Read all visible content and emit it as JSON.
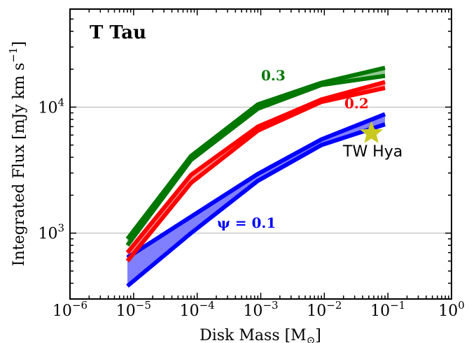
{
  "chart_data": {
    "type": "line",
    "title": "T Tau",
    "xlabel": "Disk Mass [M",
    "xlabel_sub": "⊙",
    "xlabel_close": "]",
    "ylabel": "Integrated Flux [mJy km s",
    "ylabel_sup": "−1",
    "ylabel_close": "]",
    "xscale": "log",
    "yscale": "log",
    "xlim": [
      1e-06,
      1
    ],
    "ylim": [
      300,
      60000
    ],
    "x_tick_labels": [
      {
        "value": 1e-06,
        "base": "10",
        "exp": "−6"
      },
      {
        "value": 1e-05,
        "base": "10",
        "exp": "−5"
      },
      {
        "value": 0.0001,
        "base": "10",
        "exp": "−4"
      },
      {
        "value": 0.001,
        "base": "10",
        "exp": "−3"
      },
      {
        "value": 0.01,
        "base": "10",
        "exp": "−2"
      },
      {
        "value": 0.1,
        "base": "10",
        "exp": "−1"
      },
      {
        "value": 1,
        "base": "10",
        "exp": "0"
      }
    ],
    "y_tick_labels": [
      {
        "value": 1000,
        "base": "10",
        "exp": "3"
      },
      {
        "value": 10000,
        "base": "10",
        "exp": "4"
      }
    ],
    "grid": "horizontal at major y ticks",
    "series": [
      {
        "label": "ψ = 0.1",
        "color": "#0000ff",
        "fill_color": "#8080ff",
        "x": [
          8e-06,
          8e-05,
          0.0009,
          0.009,
          0.09
        ],
        "upper": [
          640,
          1350,
          2950,
          5550,
          8800
        ],
        "lower": [
          380,
          1000,
          2600,
          5000,
          7300
        ]
      },
      {
        "label": "0.2",
        "color": "#ff0000",
        "fill_color": "#ff9090",
        "x": [
          8e-06,
          8e-05,
          0.0009,
          0.009,
          0.09
        ],
        "upper": [
          700,
          2900,
          7000,
          11500,
          15800
        ],
        "lower": [
          600,
          2500,
          6500,
          11000,
          14200
        ]
      },
      {
        "label": "0.3",
        "color": "#007700",
        "fill_color": "#90c890",
        "x": [
          8e-06,
          8e-05,
          0.0009,
          0.009,
          0.09
        ],
        "upper": [
          900,
          4100,
          10500,
          15600,
          20500
        ],
        "lower": [
          800,
          3800,
          9700,
          15000,
          17700
        ]
      }
    ],
    "annotations": [
      {
        "text": "TW Hya",
        "marker": "star",
        "color": "#c8c820",
        "x": 0.055,
        "y": 6200
      }
    ]
  }
}
